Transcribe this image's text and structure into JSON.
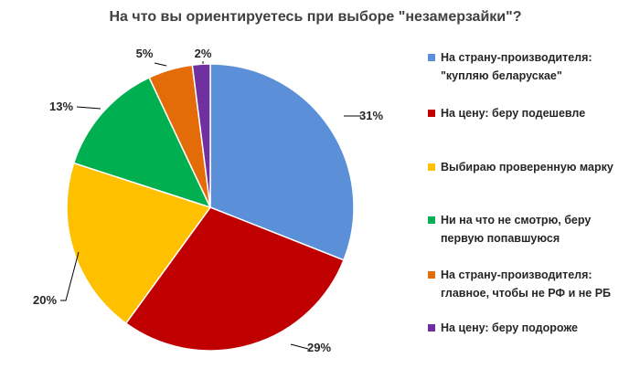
{
  "chart_data": {
    "type": "pie",
    "title": "На что вы ориентируетесь при выборе \"незамерзайки\"?",
    "legend_position": "right",
    "slices": [
      {
        "label_lines": [
          "На страну-производителя:",
          "\"купляю беларускае\""
        ],
        "value": 31,
        "data_label": "31%",
        "color": "#5B8FD8"
      },
      {
        "label_lines": [
          "На цену: беру подешевле"
        ],
        "value": 29,
        "data_label": "29%",
        "color": "#C00000"
      },
      {
        "label_lines": [
          "Выбираю проверенную марку"
        ],
        "value": 20,
        "data_label": "20%",
        "color": "#FFC000"
      },
      {
        "label_lines": [
          "Ни на что не смотрю, беру",
          "первую попавшуюся"
        ],
        "value": 13,
        "data_label": "13%",
        "color": "#00B050"
      },
      {
        "label_lines": [
          "На страну-производителя:",
          "главное, чтобы не РФ и не РБ"
        ],
        "value": 5,
        "data_label": "5%",
        "color": "#E36C09"
      },
      {
        "label_lines": [
          "На цену: беру подороже"
        ],
        "value": 2,
        "data_label": "2%",
        "color": "#7030A0"
      }
    ]
  }
}
